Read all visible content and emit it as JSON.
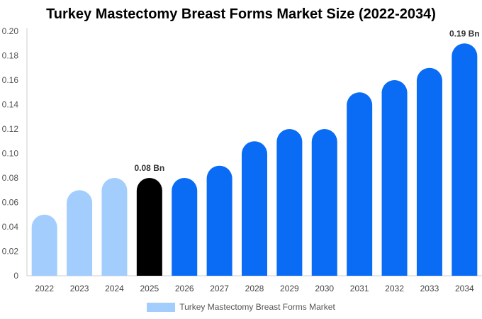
{
  "chart_data": {
    "type": "bar",
    "title": "Turkey Mastectomy Breast Forms Market Size (2022-2034)",
    "xlabel": "",
    "ylabel": "",
    "categories": [
      "2022",
      "2023",
      "2024",
      "2025",
      "2026",
      "2027",
      "2028",
      "2029",
      "2030",
      "2031",
      "2032",
      "2033",
      "2034"
    ],
    "series": [
      {
        "name": "Turkey Mastectomy Breast Forms Market",
        "values": [
          0.05,
          0.07,
          0.08,
          0.08,
          0.08,
          0.09,
          0.11,
          0.12,
          0.12,
          0.15,
          0.16,
          0.17,
          0.19
        ]
      }
    ],
    "ylim": [
      0,
      0.2
    ],
    "yticks": [
      "0",
      "0.02",
      "0.04",
      "0.06",
      "0.08",
      "0.10",
      "0.12",
      "0.14",
      "0.16",
      "0.18",
      "0.20"
    ],
    "bar_colors": [
      "#a3cdfd",
      "#a3cdfd",
      "#a3cdfd",
      "#000000",
      "#0a6cf5",
      "#0a6cf5",
      "#0a6cf5",
      "#0a6cf5",
      "#0a6cf5",
      "#0a6cf5",
      "#0a6cf5",
      "#0a6cf5",
      "#0a6cf5"
    ],
    "data_labels": [
      {
        "category": "2025",
        "text": "0.08 Bn"
      },
      {
        "category": "2034",
        "text": "0.19 Bn"
      }
    ],
    "legend_color": "#a3cdfd",
    "grid": false,
    "legend_position": "bottom"
  }
}
